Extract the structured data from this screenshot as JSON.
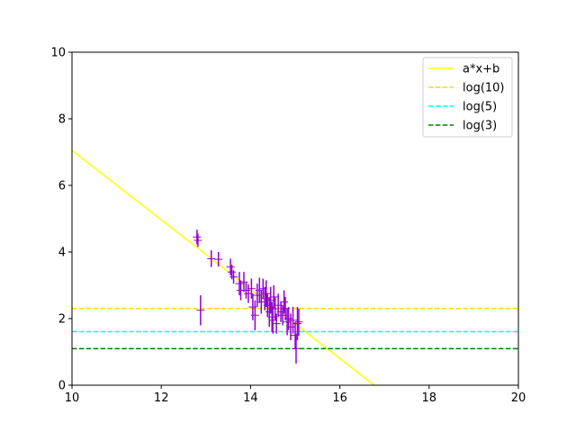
{
  "chart_data": {
    "type": "scatter",
    "title": "",
    "xlabel": "",
    "ylabel": "",
    "xlim": [
      10,
      20
    ],
    "ylim": [
      0,
      10
    ],
    "xticks": [
      10,
      12,
      14,
      16,
      18,
      20
    ],
    "yticks": [
      0,
      2,
      4,
      6,
      8,
      10
    ],
    "x_tick_labels": [
      "10",
      "12",
      "14",
      "16",
      "18",
      "20"
    ],
    "y_tick_labels": [
      "0",
      "2",
      "4",
      "6",
      "8",
      "10"
    ],
    "grid": false,
    "legend_position": "top-right",
    "legend": [
      "a*x+b",
      "log(10)",
      "log(5)",
      "log(3)"
    ],
    "lines": [
      {
        "name": "a*x+b",
        "color": "#ffff00",
        "style": "solid",
        "x": [
          10.0,
          16.77
        ],
        "y": [
          7.05,
          0.0
        ]
      },
      {
        "name": "log(10)",
        "color": "#ffd700",
        "style": "dashed",
        "y": 2.303
      },
      {
        "name": "log(5)",
        "color": "#00ffff",
        "style": "dashed",
        "y": 1.609
      },
      {
        "name": "log(3)",
        "color": "#008000",
        "style": "dashed",
        "y": 1.099
      }
    ],
    "points": {
      "color": "#9400d3",
      "marker": "+",
      "x": [
        12.8,
        12.82,
        12.88,
        13.12,
        13.28,
        13.55,
        13.58,
        13.62,
        13.75,
        13.78,
        13.85,
        13.9,
        13.95,
        14.02,
        14.05,
        14.1,
        14.15,
        14.2,
        14.24,
        14.28,
        14.32,
        14.35,
        14.38,
        14.42,
        14.45,
        14.48,
        14.5,
        14.52,
        14.55,
        14.58,
        14.62,
        14.68,
        14.72,
        14.75,
        14.78,
        14.82,
        14.85,
        14.9,
        14.95,
        15.0,
        15.02,
        15.05,
        15.08
      ],
      "y": [
        4.45,
        4.35,
        2.25,
        3.8,
        3.78,
        3.55,
        3.4,
        3.25,
        3.05,
        2.85,
        3.1,
        2.85,
        2.75,
        2.9,
        2.35,
        2.1,
        2.7,
        2.85,
        2.5,
        2.9,
        2.6,
        2.75,
        2.4,
        2.2,
        2.55,
        2.05,
        1.95,
        2.65,
        2.3,
        1.85,
        2.4,
        2.2,
        2.1,
        2.5,
        2.3,
        1.9,
        2.0,
        1.75,
        1.95,
        1.5,
        1.1,
        1.85,
        1.9
      ],
      "yerr": [
        0.22,
        0.2,
        0.45,
        0.25,
        0.22,
        0.25,
        0.22,
        0.2,
        0.35,
        0.3,
        0.3,
        0.25,
        0.28,
        0.3,
        0.4,
        0.45,
        0.35,
        0.38,
        0.35,
        0.3,
        0.35,
        0.4,
        0.35,
        0.45,
        0.4,
        0.45,
        0.4,
        0.35,
        0.35,
        0.3,
        0.35,
        0.3,
        0.3,
        0.35,
        0.35,
        0.4,
        0.35,
        0.4,
        0.4,
        0.4,
        0.45,
        0.5,
        0.4
      ]
    }
  }
}
